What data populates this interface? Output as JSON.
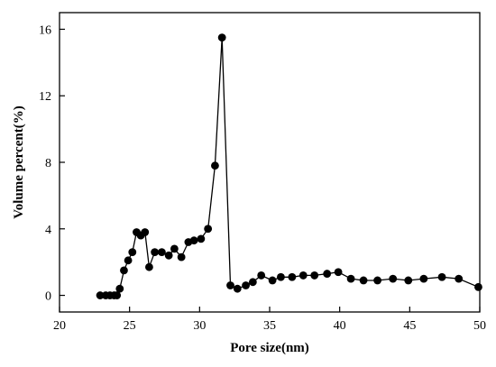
{
  "chart_data": {
    "type": "line",
    "title": "",
    "xlabel": "Pore size(nm)",
    "ylabel": "Volume percent(%)",
    "xlim": [
      20,
      50
    ],
    "ylim": [
      -1,
      17
    ],
    "xticks": [
      "20",
      "25",
      "30",
      "35",
      "40",
      "45",
      "50"
    ],
    "yticks": [
      "0",
      "4",
      "8",
      "12",
      "16"
    ],
    "grid": false,
    "legend": "none",
    "marker": "circle",
    "color": "#000000",
    "series": [
      {
        "x": [
          22.9,
          23.3,
          23.6,
          23.9,
          24.1,
          24.3,
          24.6,
          24.9,
          25.2,
          25.5,
          25.8,
          26.1,
          26.4,
          26.8,
          27.3,
          27.8,
          28.2,
          28.7,
          29.2,
          29.6,
          30.1,
          30.6,
          31.1,
          31.6,
          32.2,
          32.7,
          33.3,
          33.8,
          34.4,
          35.2,
          35.8,
          36.6,
          37.4,
          38.2,
          39.1,
          39.9,
          40.8,
          41.7,
          42.7,
          43.8,
          44.9,
          46.0,
          47.3,
          48.5,
          49.9
        ],
        "y": [
          0.0,
          0.0,
          0.0,
          0.0,
          0.0,
          0.4,
          1.5,
          2.1,
          2.6,
          3.8,
          3.6,
          3.8,
          1.7,
          2.6,
          2.6,
          2.4,
          2.8,
          2.3,
          3.2,
          3.3,
          3.4,
          4.0,
          7.8,
          15.5,
          0.6,
          0.4,
          0.6,
          0.8,
          1.2,
          0.9,
          1.1,
          1.1,
          1.2,
          1.2,
          1.3,
          1.4,
          1.0,
          0.9,
          0.9,
          1.0,
          0.9,
          1.0,
          1.1,
          1.0,
          0.5
        ]
      }
    ]
  }
}
